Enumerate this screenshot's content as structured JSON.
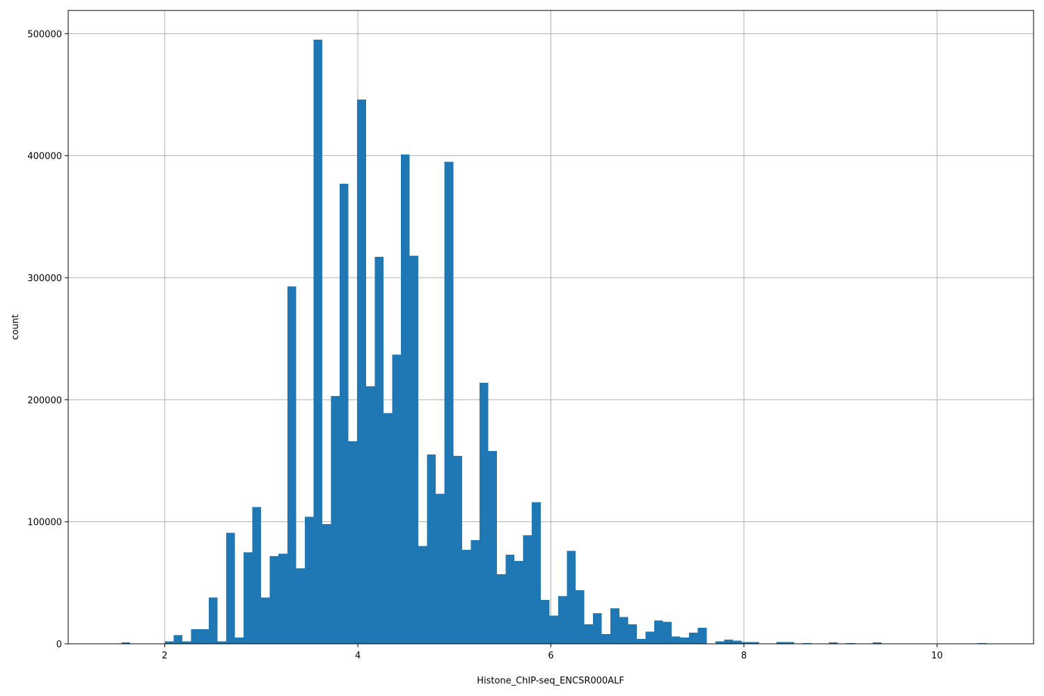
{
  "chart_data": {
    "type": "bar",
    "title": "",
    "xlabel": "Histone_ChIP-seq_ENCSR000ALF",
    "ylabel": "count",
    "bin_start": 1.55,
    "bin_width": 0.0905,
    "counts": [
      1000,
      0,
      0,
      0,
      0,
      2000,
      7000,
      2000,
      12000,
      12000,
      38000,
      2000,
      91000,
      5000,
      75000,
      112000,
      38000,
      72000,
      74000,
      293000,
      62000,
      104000,
      495000,
      98000,
      203000,
      377000,
      166000,
      446000,
      211000,
      317000,
      189000,
      237000,
      401000,
      318000,
      80000,
      155000,
      123000,
      395000,
      154000,
      77000,
      85000,
      214000,
      158000,
      57000,
      73000,
      68000,
      89000,
      116000,
      36000,
      23000,
      39000,
      76000,
      44000,
      16000,
      25000,
      8000,
      29000,
      22000,
      16000,
      4000,
      10000,
      19000,
      18000,
      6000,
      5000,
      9000,
      13000,
      0,
      2000,
      3500,
      2500,
      1500,
      1500,
      0,
      0,
      1500,
      1500,
      0,
      500,
      0,
      0,
      1000,
      0,
      500,
      0,
      0,
      1000,
      0,
      0,
      0,
      0,
      0,
      0,
      0,
      0,
      0,
      0,
      0,
      500,
      0
    ],
    "xlim": [
      1.0,
      11.0
    ],
    "ylim": [
      0,
      519000
    ],
    "xticks": [
      2,
      4,
      6,
      8,
      10
    ],
    "xtick_labels": [
      "2",
      "4",
      "6",
      "8",
      "10"
    ],
    "yticks": [
      0,
      100000,
      200000,
      300000,
      400000,
      500000
    ],
    "ytick_labels": [
      "0",
      "100000",
      "200000",
      "300000",
      "400000",
      "500000"
    ],
    "grid": true,
    "legend": "none",
    "colors": {
      "bar": "#1f77b4",
      "grid": "#b0b0b0",
      "axis": "#000000"
    }
  }
}
